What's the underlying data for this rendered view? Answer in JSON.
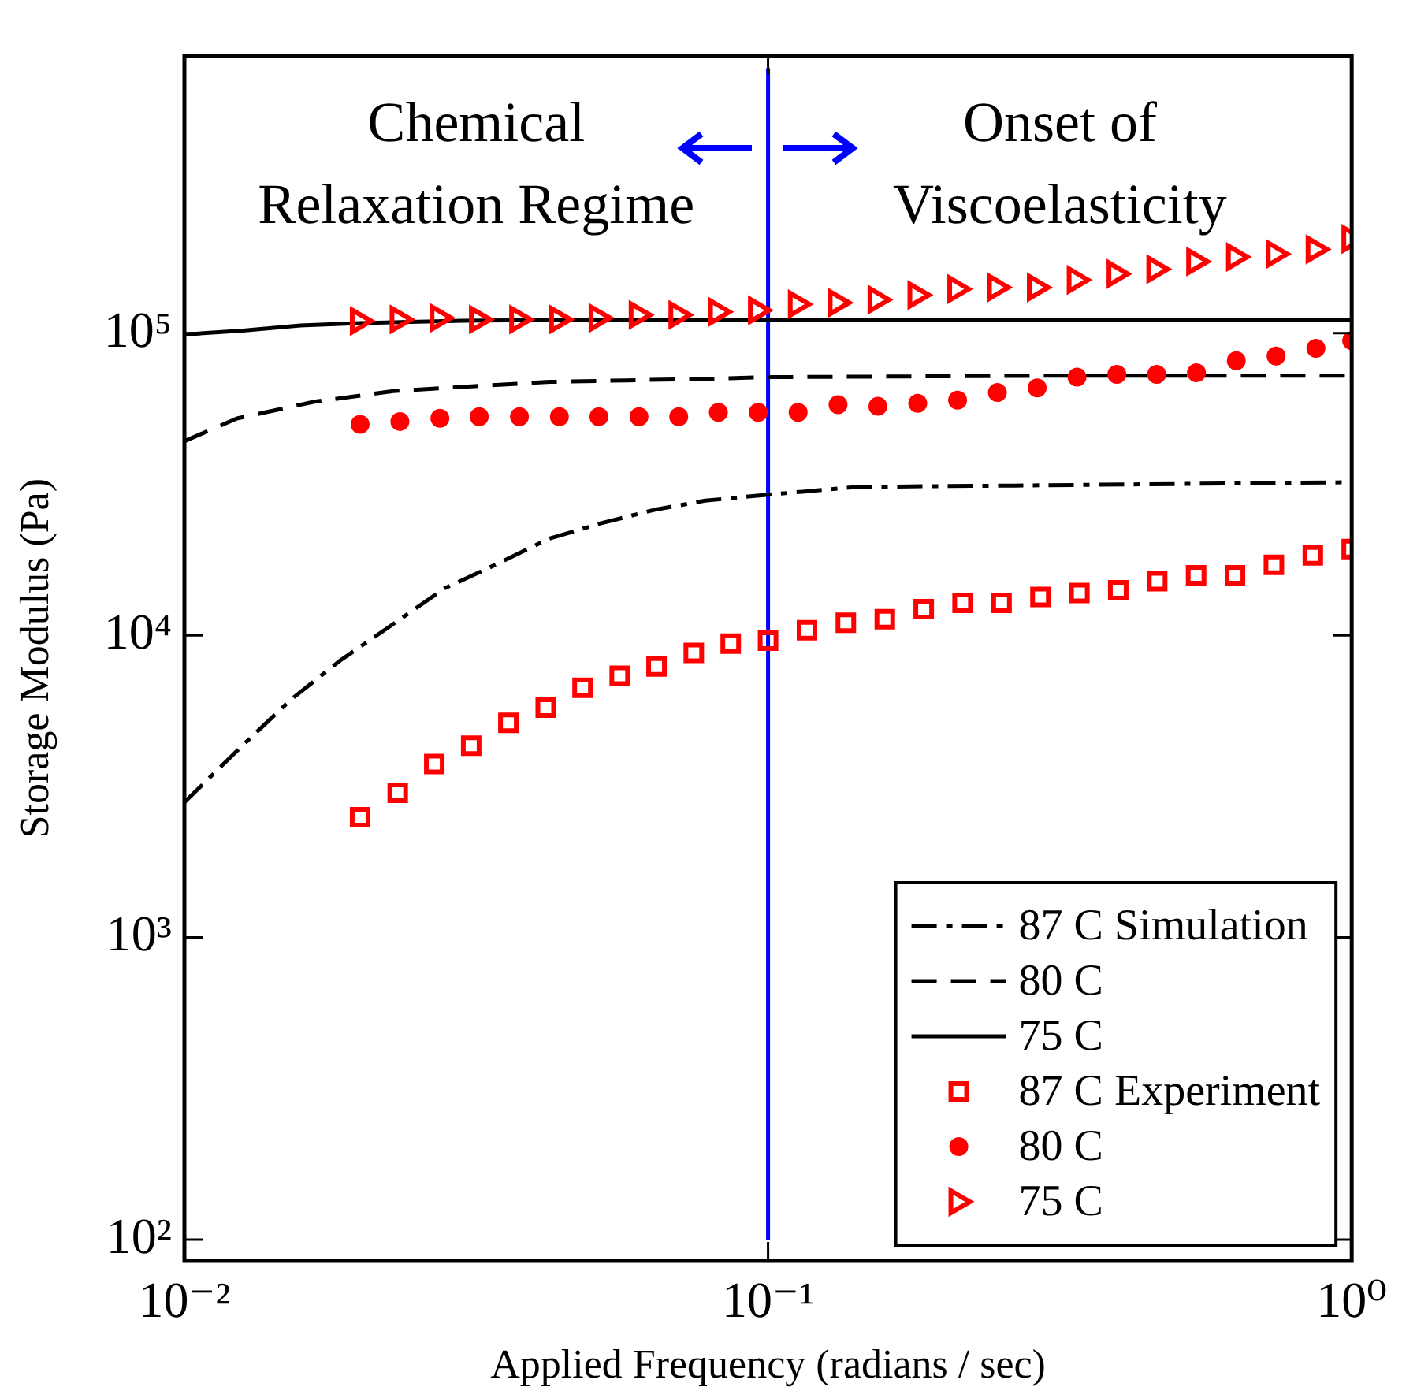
{
  "chart_data": {
    "type": "scatter",
    "xlabel": "Applied Frequency (radians / sec)",
    "ylabel": "Storage Modulus (Pa)",
    "log": "xy",
    "xlim": [
      0.01,
      1
    ],
    "ylim": [
      85,
      830000
    ],
    "xticks": [
      {
        "value": 0.01,
        "label": "10⁻²"
      },
      {
        "value": 0.1,
        "label": "10⁻¹"
      },
      {
        "value": 1,
        "label": "10⁰"
      }
    ],
    "yticks": [
      {
        "value": 100,
        "label": "10²"
      },
      {
        "value": 1000,
        "label": "10³"
      },
      {
        "value": 10000,
        "label": "10⁴"
      },
      {
        "value": 100000,
        "label": "10⁵"
      }
    ],
    "grid": false,
    "legend": "bottom right",
    "annotations": [
      "Chemical\nRelaxation Regime",
      "Onset of\nViscoelasticity"
    ],
    "ref_lines": [
      {
        "axis": "x",
        "value": 0.1,
        "color": "#0000ff"
      }
    ],
    "series": [
      {
        "name": "87 C Simulation",
        "type": "line",
        "color": "#000000",
        "line_style": "dashdot",
        "marker": "none",
        "x": [
          0.01,
          0.01242,
          0.0152,
          0.0185,
          0.0228,
          0.0279,
          0.0345,
          0.0422,
          0.0518,
          0.0638,
          0.078,
          0.1,
          0.143,
          0.265,
          1
        ],
        "values": [
          2800,
          4220,
          6110,
          8260,
          10900,
          14300,
          17300,
          20900,
          23500,
          26000,
          27900,
          29200,
          31000,
          31300,
          32100
        ]
      },
      {
        "name": "80 C",
        "type": "line",
        "color": "#000000",
        "line_style": "dashed",
        "marker": "none",
        "x": [
          0.01,
          0.0123,
          0.0167,
          0.0228,
          0.031,
          0.0423,
          0.0575,
          0.078,
          0.1,
          0.3,
          1
        ],
        "values": [
          43900,
          52200,
          59300,
          64300,
          66700,
          69000,
          69800,
          70600,
          71500,
          72300,
          72300
        ]
      },
      {
        "name": "75 C",
        "type": "line",
        "color": "#000000",
        "line_style": "solid",
        "marker": "none",
        "x": [
          0.01,
          0.0126,
          0.0158,
          0.02,
          0.03,
          0.05,
          0.1,
          1
        ],
        "values": [
          99000,
          102000,
          106000,
          108000,
          110000,
          111000,
          111000,
          111000
        ]
      },
      {
        "name": "87 C Experiment",
        "type": "scatter",
        "color": "#ff0000",
        "marker": "square",
        "x": [
          0.02,
          0.0232,
          0.0268,
          0.031,
          0.0359,
          0.0416,
          0.0481,
          0.0557,
          0.0644,
          0.0746,
          0.0863,
          0.1,
          0.1166,
          0.1359,
          0.1585,
          0.1848,
          0.2154,
          0.2512,
          0.2929,
          0.3415,
          0.3981,
          0.4642,
          0.5412,
          0.631,
          0.7356,
          0.8577,
          1
        ],
        "values": [
          2500,
          3010,
          3750,
          4310,
          5130,
          5760,
          6700,
          7350,
          7880,
          8750,
          9380,
          9600,
          10400,
          11000,
          11300,
          12200,
          12800,
          12800,
          13400,
          13800,
          14100,
          15100,
          15800,
          15800,
          17100,
          18400,
          19300
        ]
      },
      {
        "name": "80 C",
        "type": "scatter",
        "color": "#ff0000",
        "marker": "circle",
        "x": [
          0.02,
          0.0234,
          0.0274,
          0.032,
          0.0375,
          0.0439,
          0.0513,
          0.0601,
          0.0703,
          0.0822,
          0.0962,
          0.1126,
          0.1318,
          0.1542,
          0.1805,
          0.2112,
          0.2471,
          0.2891,
          0.3383,
          0.3959,
          0.4632,
          0.542,
          0.6342,
          0.7421,
          0.8683,
          1
        ],
        "values": [
          49900,
          51000,
          52300,
          52900,
          52900,
          52900,
          52900,
          52900,
          52900,
          54700,
          54700,
          54700,
          58000,
          57300,
          58600,
          60000,
          63600,
          65900,
          71500,
          73100,
          73100,
          74000,
          81100,
          84000,
          89100,
          94400
        ]
      },
      {
        "name": "75 C",
        "type": "scatter",
        "color": "#ff0000",
        "marker": "triangle",
        "x": [
          0.02,
          0.0234,
          0.0274,
          0.032,
          0.0375,
          0.0439,
          0.0513,
          0.0601,
          0.0703,
          0.0822,
          0.0962,
          0.1126,
          0.1318,
          0.1542,
          0.1805,
          0.2112,
          0.2471,
          0.2891,
          0.3383,
          0.3959,
          0.4632,
          0.542,
          0.6342,
          0.7421,
          0.8683,
          1
        ],
        "values": [
          109700,
          111000,
          112300,
          111000,
          111000,
          111000,
          112300,
          114900,
          114900,
          117600,
          119000,
          124700,
          126100,
          129100,
          133700,
          140000,
          141700,
          141700,
          150000,
          157100,
          162800,
          172600,
          178700,
          182900,
          189400,
          205000
        ]
      }
    ]
  }
}
